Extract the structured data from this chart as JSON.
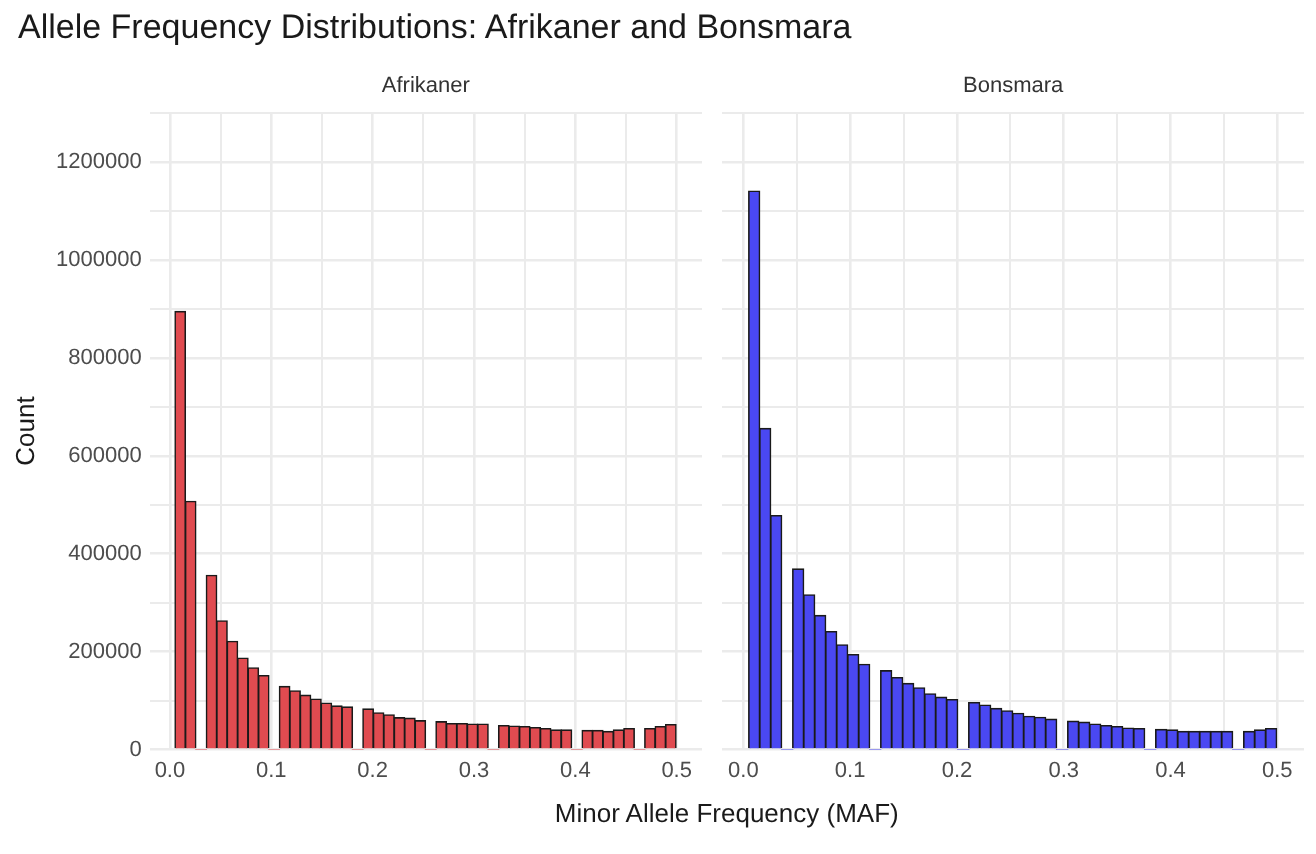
{
  "chart_data": [
    {
      "type": "histogram",
      "title": "Allele Frequency Distributions: Afrikaner and Bonsmara",
      "subtitle": "Afrikaner",
      "xlabel": "Minor Allele Frequency (MAF)",
      "ylabel": "Count",
      "bins": [
        0.005,
        0.0153,
        0.0256,
        0.0359,
        0.0462,
        0.0565,
        0.0668,
        0.0771,
        0.0874,
        0.0977,
        0.108,
        0.1183,
        0.1286,
        0.1389,
        0.1492,
        0.1595,
        0.1698,
        0.1801,
        0.1904,
        0.2007,
        0.211,
        0.2213,
        0.2316,
        0.2419,
        0.2522,
        0.2625,
        0.2728,
        0.2831,
        0.2934,
        0.3037,
        0.314,
        0.3243,
        0.3346,
        0.3449,
        0.3552,
        0.3655,
        0.3758,
        0.3861,
        0.3964,
        0.4067,
        0.417,
        0.4273,
        0.4376,
        0.4479,
        0.4582,
        0.4685,
        0.4788,
        0.4891,
        0.4994
      ],
      "series": [
        {
          "color": "#e04b50",
          "values": [
            895000,
            507000,
            0,
            356000,
            263000,
            221000,
            187000,
            167000,
            151000,
            0,
            129000,
            120000,
            111000,
            103000,
            95000,
            89000,
            87000,
            0,
            83000,
            75000,
            71000,
            65000,
            64000,
            59000,
            0,
            57000,
            53000,
            53000,
            52000,
            52000,
            0,
            49000,
            48000,
            47000,
            45000,
            43000,
            40000,
            40000,
            0,
            39000,
            39000,
            37000,
            40000,
            43000,
            0,
            43000,
            47000,
            51000
          ]
        }
      ],
      "xlim": [
        -0.02,
        0.525
      ],
      "xticks": [
        {
          "value": 0,
          "label": "0.0"
        },
        {
          "value": 0.05,
          "label": null
        },
        {
          "value": 0.1,
          "label": "0.1"
        },
        {
          "value": 0.15,
          "label": null
        },
        {
          "value": 0.2,
          "label": "0.2"
        },
        {
          "value": 0.25,
          "label": null
        },
        {
          "value": 0.3,
          "label": "0.3"
        },
        {
          "value": 0.35,
          "label": null
        },
        {
          "value": 0.4,
          "label": "0.4"
        },
        {
          "value": 0.45,
          "label": null
        },
        {
          "value": 0.5,
          "label": "0.5"
        }
      ],
      "ylim": [
        0,
        1300000
      ],
      "yticks": [
        0,
        {
          "value": 100000,
          "label": null
        },
        200000,
        {
          "value": 300000,
          "label": null
        },
        400000,
        {
          "value": 500000,
          "label": null
        },
        600000,
        {
          "value": 700000,
          "label": null
        },
        800000,
        {
          "value": 900000,
          "label": null
        },
        1000000,
        {
          "value": 1100000,
          "label": null
        },
        1200000,
        {
          "value": 1300000,
          "label": null
        }
      ],
      "grid": true,
      "legend": false
    },
    {
      "type": "histogram",
      "subtitle": "Bonsmara",
      "bins": [
        0.005,
        0.0153,
        0.0256,
        0.0359,
        0.0462,
        0.0565,
        0.0668,
        0.0771,
        0.0874,
        0.0977,
        0.108,
        0.1183,
        0.1286,
        0.1389,
        0.1492,
        0.1595,
        0.1698,
        0.1801,
        0.1904,
        0.2007,
        0.211,
        0.2213,
        0.2316,
        0.2419,
        0.2522,
        0.2625,
        0.2728,
        0.2831,
        0.2934,
        0.3037,
        0.314,
        0.3243,
        0.3346,
        0.3449,
        0.3552,
        0.3655,
        0.3758,
        0.3861,
        0.3964,
        0.4067,
        0.417,
        0.4273,
        0.4376,
        0.4479,
        0.4582,
        0.4685,
        0.4788,
        0.4891,
        0.4994
      ],
      "series": [
        {
          "color": "#4a48f2",
          "values": [
            1141000,
            656000,
            478000,
            0,
            369000,
            316000,
            274000,
            241000,
            214000,
            194000,
            174000,
            0,
            161000,
            147000,
            135000,
            126000,
            114000,
            107000,
            102000,
            0,
            96000,
            91000,
            84000,
            79000,
            74000,
            68000,
            66000,
            62000,
            0,
            58000,
            56000,
            52000,
            49000,
            47000,
            44000,
            43000,
            0,
            41000,
            40000,
            37000,
            37000,
            37000,
            37000,
            37000,
            0,
            37000,
            40000,
            43000
          ]
        }
      ],
      "xlim": [
        -0.02,
        0.525
      ],
      "xticks": [
        {
          "value": 0,
          "label": "0.0"
        },
        {
          "value": 0.05,
          "label": null
        },
        {
          "value": 0.1,
          "label": "0.1"
        },
        {
          "value": 0.15,
          "label": null
        },
        {
          "value": 0.2,
          "label": "0.2"
        },
        {
          "value": 0.25,
          "label": null
        },
        {
          "value": 0.3,
          "label": "0.3"
        },
        {
          "value": 0.35,
          "label": null
        },
        {
          "value": 0.4,
          "label": "0.4"
        },
        {
          "value": 0.45,
          "label": null
        },
        {
          "value": 0.5,
          "label": "0.5"
        }
      ],
      "ylim": [
        0,
        1300000
      ],
      "yticks": [
        0,
        {
          "value": 100000,
          "label": null
        },
        200000,
        {
          "value": 300000,
          "label": null
        },
        400000,
        {
          "value": 500000,
          "label": null
        },
        600000,
        {
          "value": 700000,
          "label": null
        },
        800000,
        {
          "value": 900000,
          "label": null
        },
        1000000,
        {
          "value": 1100000,
          "label": null
        },
        1200000,
        {
          "value": 1300000,
          "label": null
        }
      ],
      "grid": true,
      "legend": false,
      "tick_labels": "x"
    }
  ]
}
